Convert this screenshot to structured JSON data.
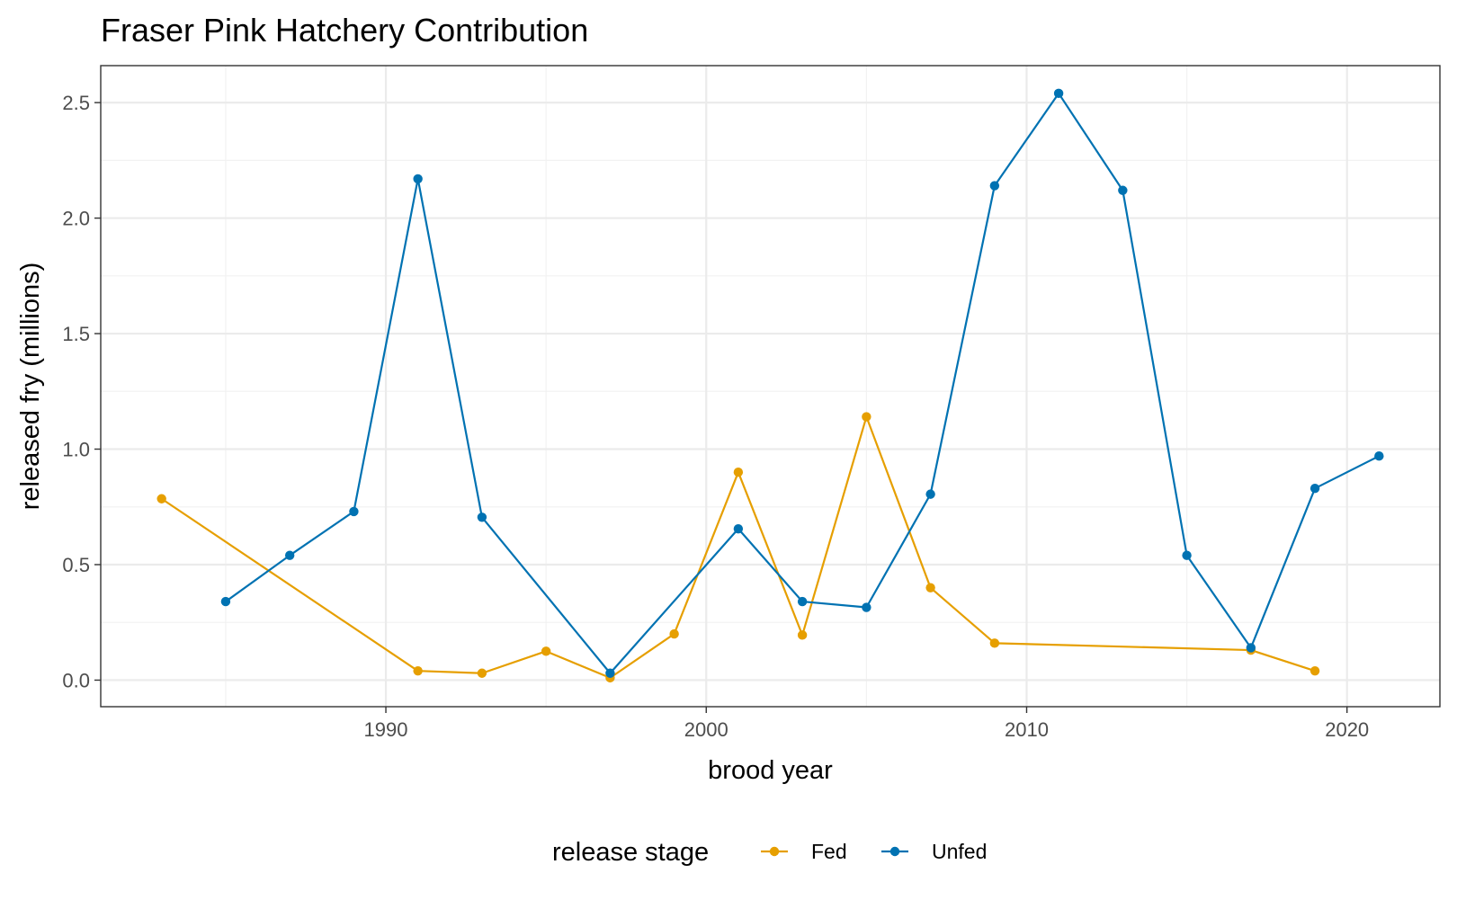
{
  "chart_data": {
    "type": "line",
    "title": "Fraser Pink Hatchery Contribution",
    "xlabel": "brood year",
    "ylabel": "released fry (millions)",
    "xlim": [
      1981.1,
      2022.9
    ],
    "ylim": [
      -0.115,
      2.66
    ],
    "x_ticks": [
      1990,
      2000,
      2010,
      2020
    ],
    "y_ticks": [
      0.0,
      0.5,
      1.0,
      1.5,
      2.0,
      2.5
    ],
    "y_tick_labels": [
      "0.0",
      "0.5",
      "1.0",
      "1.5",
      "2.0",
      "2.5"
    ],
    "grid": true,
    "legend": {
      "title": "release stage",
      "position": "bottom"
    },
    "series": [
      {
        "name": "Fed",
        "color": "#E69F00",
        "points": [
          {
            "x": 1983,
            "y": 0.785
          },
          {
            "x": 1991,
            "y": 0.04
          },
          {
            "x": 1993,
            "y": 0.03
          },
          {
            "x": 1995,
            "y": 0.125
          },
          {
            "x": 1997,
            "y": 0.01
          },
          {
            "x": 1999,
            "y": 0.2
          },
          {
            "x": 2001,
            "y": 0.9
          },
          {
            "x": 2003,
            "y": 0.195
          },
          {
            "x": 2005,
            "y": 1.14
          },
          {
            "x": 2007,
            "y": 0.4
          },
          {
            "x": 2009,
            "y": 0.16
          },
          {
            "x": 2017,
            "y": 0.13
          },
          {
            "x": 2019,
            "y": 0.04
          }
        ]
      },
      {
        "name": "Unfed",
        "color": "#0072B2",
        "points": [
          {
            "x": 1985,
            "y": 0.34
          },
          {
            "x": 1987,
            "y": 0.54
          },
          {
            "x": 1989,
            "y": 0.73
          },
          {
            "x": 1991,
            "y": 2.17
          },
          {
            "x": 1993,
            "y": 0.705
          },
          {
            "x": 1997,
            "y": 0.03
          },
          {
            "x": 2001,
            "y": 0.655
          },
          {
            "x": 2003,
            "y": 0.34
          },
          {
            "x": 2005,
            "y": 0.315
          },
          {
            "x": 2007,
            "y": 0.805
          },
          {
            "x": 2009,
            "y": 2.14
          },
          {
            "x": 2011,
            "y": 2.54
          },
          {
            "x": 2013,
            "y": 2.12
          },
          {
            "x": 2015,
            "y": 0.54
          },
          {
            "x": 2017,
            "y": 0.14
          },
          {
            "x": 2019,
            "y": 0.83
          },
          {
            "x": 2021,
            "y": 0.97
          }
        ]
      }
    ]
  }
}
